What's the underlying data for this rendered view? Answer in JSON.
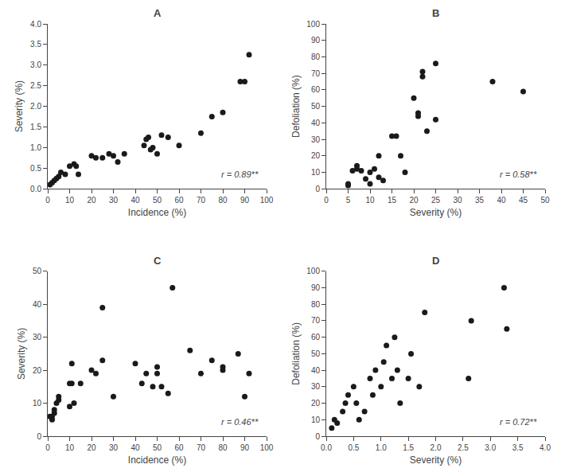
{
  "chart_data": [
    {
      "type": "scatter",
      "title": "A",
      "xlabel": "Incidence (%)",
      "ylabel": "Severity (%)",
      "annotation": "r = 0.89**",
      "color": "#1a1a1a",
      "grid": false,
      "xlim": [
        0,
        100
      ],
      "ylim": [
        0,
        4.0
      ],
      "xticks": [
        0,
        10,
        20,
        30,
        40,
        50,
        60,
        70,
        80,
        90,
        100
      ],
      "yticks": [
        {
          "value": 0,
          "label": "0.0"
        },
        0.5,
        {
          "value": 1,
          "label": "1.0"
        },
        1.5,
        {
          "value": 2,
          "label": "2.0"
        },
        2.5,
        {
          "value": 3,
          "label": "3.0"
        },
        3.5,
        {
          "value": 4,
          "label": "4.0"
        }
      ],
      "x": [
        1,
        2,
        3,
        4,
        5,
        6,
        8,
        10,
        12,
        13,
        14,
        20,
        22,
        25,
        28,
        30,
        32,
        35,
        44,
        45,
        46,
        47,
        48,
        50,
        52,
        55,
        60,
        70,
        75,
        80,
        88,
        90,
        92
      ],
      "values": [
        0.1,
        0.15,
        0.2,
        0.25,
        0.3,
        0.4,
        0.35,
        0.55,
        0.6,
        0.55,
        0.35,
        0.8,
        0.75,
        0.75,
        0.85,
        0.8,
        0.65,
        0.85,
        1.05,
        1.2,
        1.25,
        0.95,
        1.0,
        0.85,
        1.3,
        1.25,
        1.05,
        1.35,
        1.75,
        1.85,
        2.6,
        2.6,
        3.25
      ]
    },
    {
      "type": "scatter",
      "title": "B",
      "xlabel": "Severity (%)",
      "ylabel": "Defoliation (%)",
      "annotation": "r = 0.58**",
      "color": "#1a1a1a",
      "grid": false,
      "xlim": [
        0,
        50
      ],
      "ylim": [
        0,
        100
      ],
      "xticks": [
        0,
        5,
        10,
        15,
        20,
        25,
        30,
        35,
        40,
        45,
        50
      ],
      "yticks": [
        0,
        10,
        20,
        30,
        40,
        50,
        60,
        70,
        80,
        90,
        100
      ],
      "x": [
        5,
        5,
        6,
        7,
        7,
        8,
        9,
        10,
        10,
        11,
        12,
        12,
        13,
        15,
        16,
        17,
        18,
        20,
        21,
        21,
        22,
        22,
        23,
        25,
        25,
        38,
        45
      ],
      "values": [
        2,
        3,
        11,
        12,
        14,
        11,
        6,
        10,
        3,
        12,
        20,
        7,
        5,
        32,
        32,
        20,
        10,
        55,
        44,
        46,
        71,
        68,
        35,
        42,
        76,
        65,
        59
      ]
    },
    {
      "type": "scatter",
      "title": "C",
      "xlabel": "Incidence (%)",
      "ylabel": "Severity (%)",
      "annotation": "r = 0.46**",
      "color": "#1a1a1a",
      "grid": false,
      "xlim": [
        0,
        100
      ],
      "ylim": [
        0,
        50
      ],
      "xticks": [
        0,
        10,
        20,
        30,
        40,
        50,
        60,
        70,
        80,
        90,
        100
      ],
      "yticks": [
        0,
        10,
        20,
        30,
        40,
        50
      ],
      "x": [
        1,
        2,
        2,
        3,
        3,
        4,
        5,
        5,
        10,
        10,
        11,
        11,
        12,
        15,
        20,
        22,
        25,
        25,
        30,
        40,
        43,
        45,
        48,
        50,
        50,
        52,
        55,
        57,
        65,
        70,
        75,
        80,
        80,
        87,
        90,
        92
      ],
      "values": [
        6,
        5,
        6,
        7,
        8,
        10,
        11,
        12,
        9,
        16,
        16,
        22,
        10,
        16,
        20,
        19,
        23,
        39,
        12,
        22,
        16,
        19,
        15,
        19,
        21,
        15,
        13,
        45,
        26,
        19,
        23,
        21,
        20,
        25,
        12,
        19
      ]
    },
    {
      "type": "scatter",
      "title": "D",
      "xlabel": "Severity (%)",
      "ylabel": "Defoliation (%)",
      "annotation": "r = 0.72**",
      "color": "#1a1a1a",
      "grid": false,
      "xlim": [
        0.0,
        4.0
      ],
      "ylim": [
        0,
        100
      ],
      "xticks": [
        {
          "value": 0,
          "label": "0.0"
        },
        0.5,
        {
          "value": 1,
          "label": "1.0"
        },
        1.5,
        {
          "value": 2,
          "label": "2.0"
        },
        2.5,
        {
          "value": 3,
          "label": "3.0"
        },
        3.5,
        {
          "value": 4,
          "label": "4.0"
        }
      ],
      "yticks": [
        0,
        10,
        20,
        30,
        40,
        50,
        60,
        70,
        80,
        90,
        100
      ],
      "x": [
        0.1,
        0.15,
        0.2,
        0.3,
        0.35,
        0.4,
        0.5,
        0.55,
        0.6,
        0.7,
        0.8,
        0.85,
        0.9,
        1.0,
        1.05,
        1.1,
        1.2,
        1.25,
        1.3,
        1.35,
        1.5,
        1.55,
        1.7,
        1.8,
        2.6,
        2.65,
        3.25,
        3.3
      ],
      "values": [
        5,
        10,
        8,
        15,
        20,
        25,
        30,
        20,
        10,
        15,
        35,
        25,
        40,
        30,
        45,
        55,
        35,
        60,
        40,
        20,
        35,
        50,
        30,
        75,
        35,
        70,
        90,
        65
      ]
    }
  ]
}
